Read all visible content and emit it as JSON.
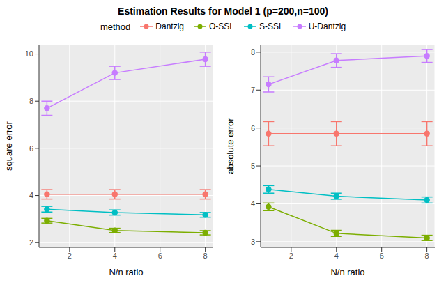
{
  "title": "Estimation Results for Model 1 (p=200,n=100)",
  "legend_title": "method",
  "legend": "top",
  "chart_data": [
    {
      "type": "line",
      "x_label": "N/n ratio",
      "y_label": "square error",
      "x": [
        1,
        4,
        8
      ],
      "xlim": [
        0.65,
        8.35
      ],
      "xticks": [
        2,
        4,
        6,
        8
      ],
      "ylim": [
        1.8,
        10.4
      ],
      "yticks": [
        2,
        4,
        6,
        8,
        10
      ],
      "grid": true,
      "series": [
        {
          "name": "Dantzig",
          "color": "#F8766D",
          "marker": "circle",
          "values": [
            4.05,
            4.05,
            4.05
          ],
          "errors": [
            0.2,
            0.2,
            0.2
          ]
        },
        {
          "name": "O-SSL",
          "color": "#7CAE00",
          "marker": "circle",
          "values": [
            2.93,
            2.52,
            2.42
          ],
          "errors": [
            0.1,
            0.09,
            0.09
          ]
        },
        {
          "name": "S-SSL",
          "color": "#00BFC4",
          "marker": "circle",
          "values": [
            3.42,
            3.28,
            3.18
          ],
          "errors": [
            0.12,
            0.11,
            0.1
          ]
        },
        {
          "name": "U-Dantzig",
          "color": "#C77CFF",
          "marker": "circle",
          "values": [
            7.7,
            9.2,
            9.78
          ],
          "errors": [
            0.3,
            0.28,
            0.3
          ]
        }
      ]
    },
    {
      "type": "line",
      "x_label": "N/n ratio",
      "y_label": "absolute error",
      "x": [
        1,
        4,
        8
      ],
      "xlim": [
        0.65,
        8.35
      ],
      "xticks": [
        2,
        4,
        6,
        8
      ],
      "ylim": [
        2.85,
        8.2
      ],
      "yticks": [
        3,
        4,
        5,
        6,
        7,
        8
      ],
      "grid": true,
      "series": [
        {
          "name": "Dantzig",
          "color": "#F8766D",
          "marker": "circle",
          "values": [
            5.85,
            5.85,
            5.85
          ],
          "errors": [
            0.32,
            0.32,
            0.32
          ]
        },
        {
          "name": "O-SSL",
          "color": "#7CAE00",
          "marker": "circle",
          "values": [
            3.92,
            3.22,
            3.1
          ],
          "errors": [
            0.1,
            0.08,
            0.07
          ]
        },
        {
          "name": "S-SSL",
          "color": "#00BFC4",
          "marker": "circle",
          "values": [
            4.38,
            4.2,
            4.1
          ],
          "errors": [
            0.1,
            0.08,
            0.08
          ]
        },
        {
          "name": "U-Dantzig",
          "color": "#C77CFF",
          "marker": "circle",
          "values": [
            7.15,
            7.78,
            7.9
          ],
          "errors": [
            0.2,
            0.18,
            0.17
          ]
        }
      ]
    }
  ]
}
